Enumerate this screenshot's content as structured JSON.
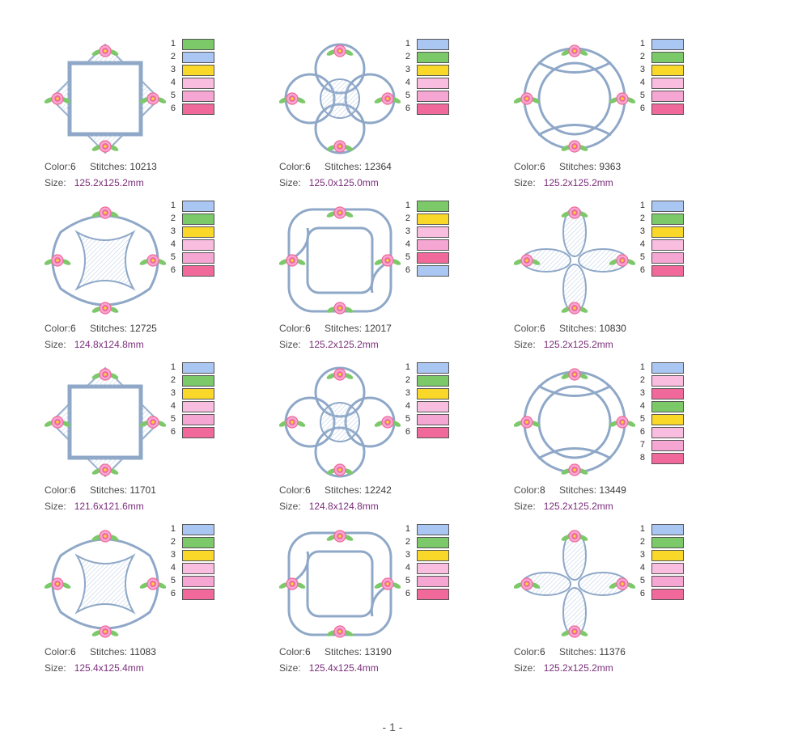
{
  "labels": {
    "color": "Color:",
    "stitches": "Stitches:",
    "size": "Size:"
  },
  "colors": {
    "blue": "#aac6f2",
    "green": "#7cc96a",
    "yellow": "#f9d82a",
    "lightpink": "#f9bde0",
    "pink": "#f6a6d3",
    "rose": "#f0699a",
    "outline": "#8fa8c8"
  },
  "designs": [
    {
      "color_count": "6",
      "stitches": "10213",
      "size": "125.2x125.2mm",
      "thread_colors": [
        "green",
        "blue",
        "yellow",
        "lightpink",
        "pink",
        "rose"
      ],
      "thread_numbers": [
        "1",
        "2",
        "3",
        "4",
        "5",
        "6"
      ]
    },
    {
      "color_count": "6",
      "stitches": "12364",
      "size": "125.0x125.0mm",
      "thread_colors": [
        "blue",
        "green",
        "yellow",
        "lightpink",
        "pink",
        "rose"
      ],
      "thread_numbers": [
        "1",
        "2",
        "3",
        "4",
        "5",
        "6"
      ]
    },
    {
      "color_count": "6",
      "stitches": "9363",
      "size": "125.2x125.2mm",
      "thread_colors": [
        "blue",
        "green",
        "yellow",
        "lightpink",
        "pink",
        "rose"
      ],
      "thread_numbers": [
        "1",
        "2",
        "3",
        "4",
        "5",
        "6"
      ]
    },
    {
      "color_count": "6",
      "stitches": "12725",
      "size": "124.8x124.8mm",
      "thread_colors": [
        "blue",
        "green",
        "yellow",
        "lightpink",
        "pink",
        "rose"
      ],
      "thread_numbers": [
        "1",
        "2",
        "3",
        "4",
        "5",
        "6"
      ]
    },
    {
      "color_count": "6",
      "stitches": "12017",
      "size": "125.2x125.2mm",
      "thread_colors": [
        "green",
        "yellow",
        "lightpink",
        "pink",
        "rose",
        "blue"
      ],
      "thread_numbers": [
        "1",
        "2",
        "3",
        "4",
        "5",
        "6"
      ]
    },
    {
      "color_count": "6",
      "stitches": "10830",
      "size": "125.2x125.2mm",
      "thread_colors": [
        "blue",
        "green",
        "yellow",
        "lightpink",
        "pink",
        "rose"
      ],
      "thread_numbers": [
        "1",
        "2",
        "3",
        "4",
        "5",
        "6"
      ]
    },
    {
      "color_count": "6",
      "stitches": "11701",
      "size": "121.6x121.6mm",
      "thread_colors": [
        "blue",
        "green",
        "yellow",
        "lightpink",
        "pink",
        "rose"
      ],
      "thread_numbers": [
        "1",
        "2",
        "3",
        "4",
        "5",
        "6"
      ]
    },
    {
      "color_count": "6",
      "stitches": "12242",
      "size": "124.8x124.8mm",
      "thread_colors": [
        "blue",
        "green",
        "yellow",
        "lightpink",
        "pink",
        "rose"
      ],
      "thread_numbers": [
        "1",
        "2",
        "3",
        "4",
        "5",
        "6"
      ]
    },
    {
      "color_count": "8",
      "stitches": "13449",
      "size": "125.2x125.2mm",
      "thread_colors": [
        "blue",
        "lightpink",
        "rose",
        "green",
        "yellow",
        "lightpink",
        "pink",
        "rose"
      ],
      "thread_numbers": [
        "1",
        "2",
        "3",
        "4",
        "5",
        "6",
        "7",
        "8"
      ]
    },
    {
      "color_count": "6",
      "stitches": "11083",
      "size": "125.4x125.4mm",
      "thread_colors": [
        "blue",
        "green",
        "yellow",
        "lightpink",
        "pink",
        "rose"
      ],
      "thread_numbers": [
        "1",
        "2",
        "3",
        "4",
        "5",
        "6"
      ]
    },
    {
      "color_count": "6",
      "stitches": "13190",
      "size": "125.4x125.4mm",
      "thread_colors": [
        "blue",
        "green",
        "yellow",
        "lightpink",
        "pink",
        "rose"
      ],
      "thread_numbers": [
        "1",
        "2",
        "3",
        "4",
        "5",
        "6"
      ]
    },
    {
      "color_count": "6",
      "stitches": "11376",
      "size": "125.2x125.2mm",
      "thread_colors": [
        "blue",
        "green",
        "yellow",
        "lightpink",
        "pink",
        "rose"
      ],
      "thread_numbers": [
        "1",
        "2",
        "3",
        "4",
        "5",
        "6"
      ]
    }
  ],
  "footer": {
    "page_number": "- 1 -"
  }
}
